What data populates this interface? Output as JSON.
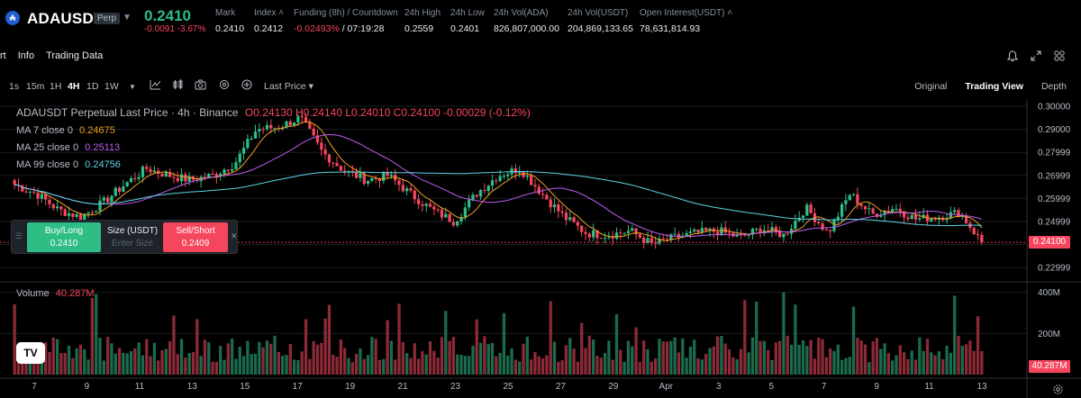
{
  "header": {
    "logo_letter": "₳",
    "symbol": "ADAUSDT",
    "badge": "Perp",
    "last_price": "0.2410",
    "change": "-0.0091 -3.67%",
    "stats": [
      {
        "key": "Mark",
        "value": "0.2410"
      },
      {
        "key": "Index ˄",
        "value": "0.2412"
      },
      {
        "key": "Funding (8h) / Countdown",
        "value_neg": "-0.02493%",
        "value": " / 07:19:28"
      },
      {
        "key": "24h High",
        "value": "0.2559"
      },
      {
        "key": "24h Low",
        "value": "0.2401"
      },
      {
        "key": "24h Vol(ADA)",
        "value": "826,807,000.00"
      },
      {
        "key": "24h Vol(USDT)",
        "value": "204,869,133.65"
      },
      {
        "key": "Open Interest(USDT) ˄",
        "value": "78,631,814.93"
      }
    ]
  },
  "tabs": [
    "rt",
    "Info",
    "Trading Data"
  ],
  "top_icons": [
    "bell-icon",
    "expand-icon",
    "grid-icon"
  ],
  "toolbar": {
    "intervals": [
      "1s",
      "15m",
      "1H",
      "4H",
      "1D",
      "1W"
    ],
    "active_interval": "4H",
    "price_type": "Last Price ▾",
    "views": [
      "Original",
      "Trading View",
      "Depth"
    ],
    "active_view": "Trading View"
  },
  "legend": {
    "title": "ADAUSDT Perpetual Last Price · 4h · Binance",
    "ohlc": "O0.24130  H0.24140  L0.24010  C0.24100  -0.00029 (-0.12%)",
    "ma": [
      {
        "label": "MA 7 close 0",
        "value": "0.24675",
        "color": "#f0a020"
      },
      {
        "label": "MA 25 close 0",
        "value": "0.25113",
        "color": "#c05cf0"
      },
      {
        "label": "MA 99 close 0",
        "value": "0.24756",
        "color": "#5fd3e6"
      }
    ]
  },
  "trade": {
    "buy_label": "Buy/Long",
    "buy_price": "0.2410",
    "size_label": "Size (USDT)",
    "size_placeholder": "Enter Size",
    "sell_label": "Sell/Short",
    "sell_price": "0.2409"
  },
  "volume": {
    "label": "Volume",
    "value": "40.287M",
    "tag": "40.287M"
  },
  "last_tag": "0.24100",
  "tv_logo": "TV",
  "colors": {
    "up": "#2ebd85",
    "down": "#f6465d",
    "ma7": "#f0a020",
    "ma25": "#c05cf0",
    "ma99": "#5fd3e6"
  },
  "chart_data": {
    "type": "candlestick",
    "price_axis_ticks": [
      "0.30000",
      "0.29000",
      "0.27999",
      "0.26999",
      "0.25999",
      "0.24999",
      "0.23999",
      "0.22999"
    ],
    "volume_axis_ticks": [
      "400M",
      "200M"
    ],
    "x_tick_labels": [
      "7",
      "9",
      "11",
      "13",
      "15",
      "17",
      "19",
      "21",
      "23",
      "25",
      "27",
      "29",
      "Apr",
      "3",
      "5",
      "7",
      "9",
      "11",
      "13"
    ],
    "last_price": 0.241,
    "close_path_keypoints": [
      0.266,
      0.262,
      0.255,
      0.252,
      0.258,
      0.266,
      0.273,
      0.27,
      0.268,
      0.27,
      0.275,
      0.29,
      0.291,
      0.295,
      0.28,
      0.272,
      0.268,
      0.27,
      0.262,
      0.255,
      0.25,
      0.262,
      0.27,
      0.273,
      0.262,
      0.252,
      0.245,
      0.244,
      0.246,
      0.24,
      0.243,
      0.245,
      0.246,
      0.243,
      0.247,
      0.244,
      0.256,
      0.245,
      0.262,
      0.253,
      0.256,
      0.251,
      0.252,
      0.254,
      0.241
    ]
  }
}
